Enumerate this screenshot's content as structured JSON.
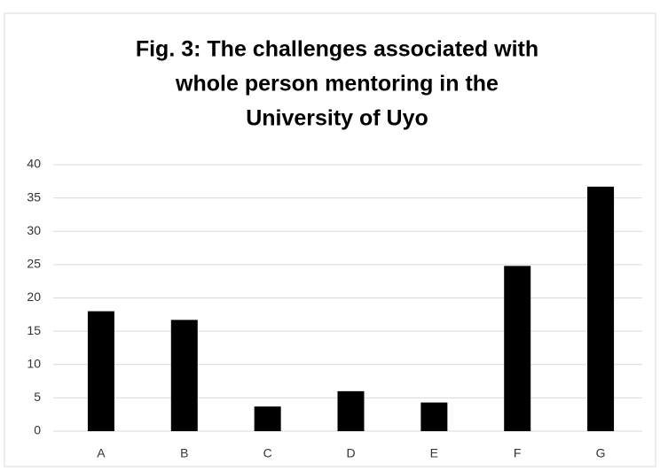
{
  "chart_data": {
    "type": "bar",
    "title": [
      "Fig. 3: The challenges associated with",
      "whole person mentoring in the",
      "University of Uyo"
    ],
    "categories": [
      "A",
      "B",
      "C",
      "D",
      "E",
      "F",
      "G"
    ],
    "values": [
      18,
      16.7,
      3.7,
      6,
      4.3,
      24.8,
      36.7
    ],
    "color": "#000000",
    "ylim": [
      0,
      40
    ],
    "yticks": [
      0,
      5,
      10,
      15,
      20,
      25,
      30,
      35,
      40
    ],
    "grid": true
  }
}
